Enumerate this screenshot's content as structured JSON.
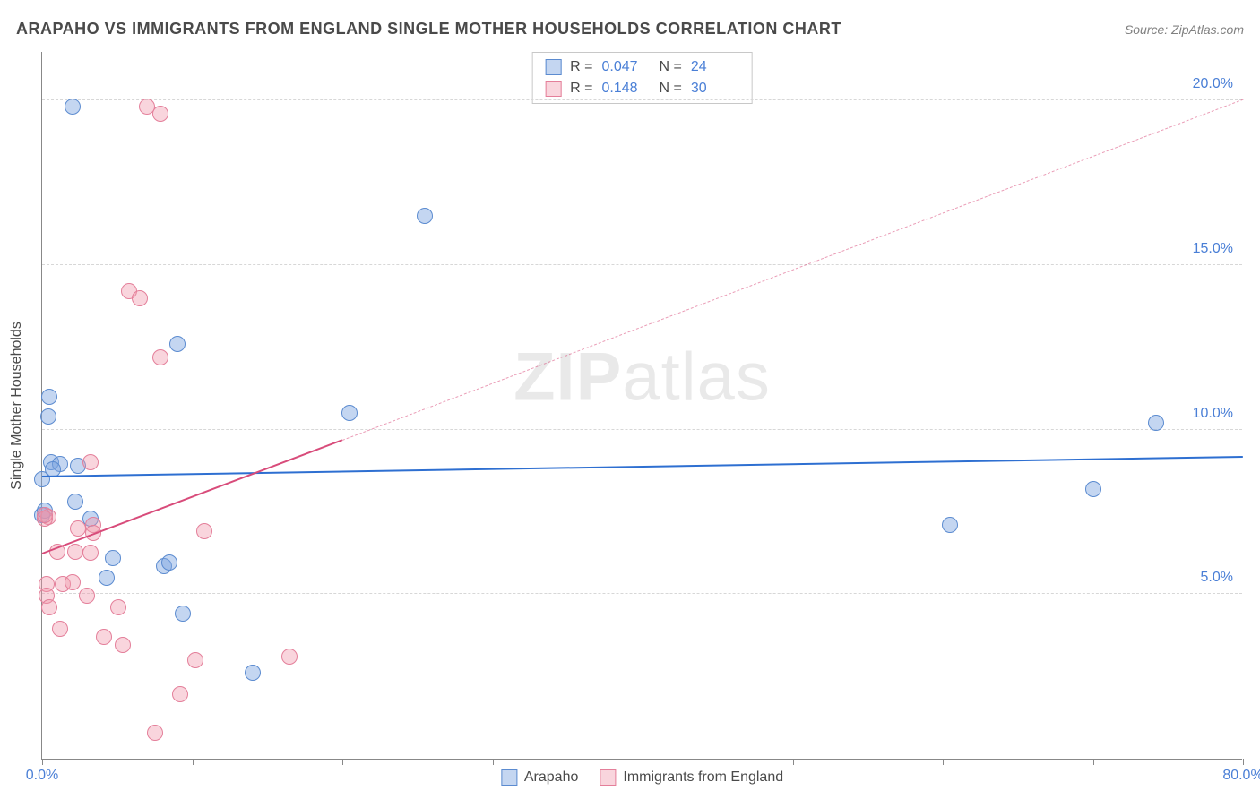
{
  "title": "ARAPAHO VS IMMIGRANTS FROM ENGLAND SINGLE MOTHER HOUSEHOLDS CORRELATION CHART",
  "source": "Source: ZipAtlas.com",
  "ylabel": "Single Mother Households",
  "watermark_bold": "ZIP",
  "watermark_rest": "atlas",
  "chart": {
    "type": "scatter",
    "xlim": [
      0,
      80
    ],
    "ylim": [
      0,
      21.5
    ],
    "x_ticks": [
      0,
      10,
      20,
      30,
      40,
      50,
      60,
      70,
      80
    ],
    "x_tick_labels": {
      "0": "0.0%",
      "80": "80.0%"
    },
    "y_ticks": [
      5,
      10,
      15,
      20
    ],
    "y_tick_labels": [
      "5.0%",
      "10.0%",
      "15.0%",
      "20.0%"
    ],
    "grid_color": "#d7d7d7",
    "axis_color": "#888888",
    "background_color": "#ffffff",
    "tick_label_color": "#4a7fd6",
    "marker_radius": 9,
    "marker_border_width": 1.2,
    "series": [
      {
        "name": "Arapaho",
        "fill": "rgba(125,165,224,0.45)",
        "stroke": "#5b8bd0",
        "R": "0.047",
        "N": "24",
        "trend": {
          "x1": 0,
          "y1": 8.55,
          "x2": 80,
          "y2": 9.15,
          "color": "#2e6fd1",
          "width": 2,
          "dashed": false
        },
        "points": [
          [
            2.0,
            19.8
          ],
          [
            0.5,
            11.0
          ],
          [
            0.4,
            10.4
          ],
          [
            0.6,
            9.0
          ],
          [
            1.2,
            8.95
          ],
          [
            25.5,
            16.5
          ],
          [
            74.2,
            10.2
          ],
          [
            70.0,
            8.2
          ],
          [
            60.5,
            7.1
          ],
          [
            0.0,
            8.5
          ],
          [
            0.0,
            7.4
          ],
          [
            0.2,
            7.55
          ],
          [
            2.2,
            7.8
          ],
          [
            3.2,
            7.3
          ],
          [
            4.7,
            6.1
          ],
          [
            4.3,
            5.5
          ],
          [
            8.1,
            5.85
          ],
          [
            8.5,
            5.95
          ],
          [
            9.4,
            4.4
          ],
          [
            14.0,
            2.6
          ],
          [
            2.4,
            8.9
          ],
          [
            20.5,
            10.5
          ],
          [
            9.0,
            12.6
          ],
          [
            0.7,
            8.8
          ]
        ]
      },
      {
        "name": "Immigrants from England",
        "fill": "rgba(240,150,170,0.40)",
        "stroke": "#e47f9a",
        "R": "0.148",
        "N": "30",
        "trend_solid": {
          "x1": 0,
          "y1": 6.2,
          "x2": 20,
          "y2": 9.65,
          "color": "#d84b7a",
          "width": 2
        },
        "trend_dashed": {
          "x1": 20,
          "y1": 9.65,
          "x2": 80,
          "y2": 20.0,
          "color": "rgba(216,75,122,0.55)",
          "width": 1
        },
        "points": [
          [
            7.0,
            19.8
          ],
          [
            7.9,
            19.6
          ],
          [
            5.8,
            14.2
          ],
          [
            6.5,
            14.0
          ],
          [
            7.9,
            12.2
          ],
          [
            3.2,
            9.0
          ],
          [
            0.4,
            7.35
          ],
          [
            0.15,
            7.3
          ],
          [
            0.2,
            7.4
          ],
          [
            2.4,
            7.0
          ],
          [
            3.4,
            7.1
          ],
          [
            3.4,
            6.85
          ],
          [
            10.8,
            6.9
          ],
          [
            1.0,
            6.3
          ],
          [
            2.2,
            6.3
          ],
          [
            3.2,
            6.25
          ],
          [
            0.3,
            5.3
          ],
          [
            1.4,
            5.3
          ],
          [
            2.0,
            5.35
          ],
          [
            0.3,
            4.95
          ],
          [
            3.0,
            4.95
          ],
          [
            0.5,
            4.6
          ],
          [
            5.1,
            4.6
          ],
          [
            4.1,
            3.7
          ],
          [
            1.2,
            3.95
          ],
          [
            5.4,
            3.45
          ],
          [
            10.2,
            3.0
          ],
          [
            16.5,
            3.1
          ],
          [
            9.2,
            1.95
          ],
          [
            7.5,
            0.8
          ]
        ]
      }
    ]
  },
  "legend_top": {
    "rows": [
      {
        "swatch_fill": "rgba(125,165,224,0.45)",
        "swatch_stroke": "#5b8bd0",
        "r_label": "R =",
        "r": "0.047",
        "n_label": "N =",
        "n": "24"
      },
      {
        "swatch_fill": "rgba(240,150,170,0.40)",
        "swatch_stroke": "#e47f9a",
        "r_label": "R =",
        "r": "0.148",
        "n_label": "N =",
        "n": "30"
      }
    ]
  },
  "legend_bottom": {
    "items": [
      {
        "swatch_fill": "rgba(125,165,224,0.45)",
        "swatch_stroke": "#5b8bd0",
        "label": "Arapaho"
      },
      {
        "swatch_fill": "rgba(240,150,170,0.40)",
        "swatch_stroke": "#e47f9a",
        "label": "Immigrants from England"
      }
    ]
  }
}
